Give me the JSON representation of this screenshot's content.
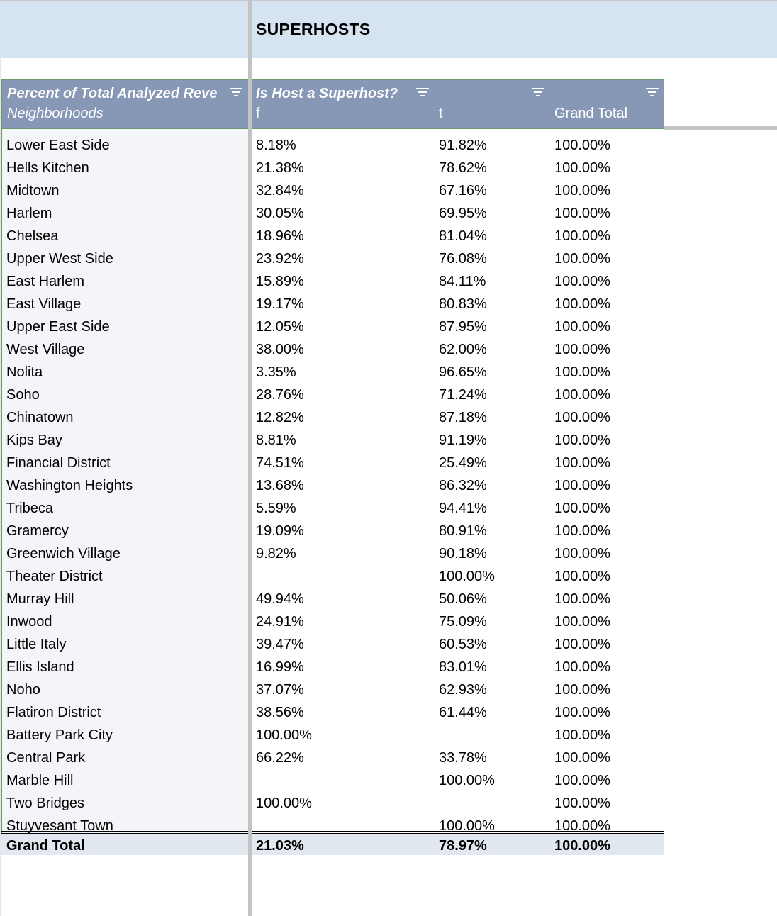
{
  "sheet": {
    "title": "SUPERHOSTS",
    "header": {
      "value_label": "Percent of Total Analyzed Reve",
      "row_label": "Neighborhoods",
      "column_field": "Is Host a Superhost?",
      "col_f": "f",
      "col_t": "t",
      "col_total": "Grand Total"
    },
    "rows": [
      {
        "name": "Lower East Side",
        "f": "8.18%",
        "t": "91.82%",
        "total": "100.00%"
      },
      {
        "name": "Hells Kitchen",
        "f": "21.38%",
        "t": "78.62%",
        "total": "100.00%"
      },
      {
        "name": "Midtown",
        "f": "32.84%",
        "t": "67.16%",
        "total": "100.00%"
      },
      {
        "name": "Harlem",
        "f": "30.05%",
        "t": "69.95%",
        "total": "100.00%"
      },
      {
        "name": "Chelsea",
        "f": "18.96%",
        "t": "81.04%",
        "total": "100.00%"
      },
      {
        "name": "Upper West Side",
        "f": "23.92%",
        "t": "76.08%",
        "total": "100.00%"
      },
      {
        "name": "East Harlem",
        "f": "15.89%",
        "t": "84.11%",
        "total": "100.00%"
      },
      {
        "name": "East Village",
        "f": "19.17%",
        "t": "80.83%",
        "total": "100.00%"
      },
      {
        "name": "Upper East Side",
        "f": "12.05%",
        "t": "87.95%",
        "total": "100.00%"
      },
      {
        "name": "West Village",
        "f": "38.00%",
        "t": "62.00%",
        "total": "100.00%"
      },
      {
        "name": "Nolita",
        "f": "3.35%",
        "t": "96.65%",
        "total": "100.00%"
      },
      {
        "name": "Soho",
        "f": "28.76%",
        "t": "71.24%",
        "total": "100.00%"
      },
      {
        "name": "Chinatown",
        "f": "12.82%",
        "t": "87.18%",
        "total": "100.00%"
      },
      {
        "name": "Kips Bay",
        "f": "8.81%",
        "t": "91.19%",
        "total": "100.00%"
      },
      {
        "name": "Financial District",
        "f": "74.51%",
        "t": "25.49%",
        "total": "100.00%"
      },
      {
        "name": "Washington Heights",
        "f": "13.68%",
        "t": "86.32%",
        "total": "100.00%"
      },
      {
        "name": "Tribeca",
        "f": "5.59%",
        "t": "94.41%",
        "total": "100.00%"
      },
      {
        "name": "Gramercy",
        "f": "19.09%",
        "t": "80.91%",
        "total": "100.00%"
      },
      {
        "name": "Greenwich Village",
        "f": "9.82%",
        "t": "90.18%",
        "total": "100.00%"
      },
      {
        "name": "Theater District",
        "f": "",
        "t": "100.00%",
        "total": "100.00%"
      },
      {
        "name": "Murray Hill",
        "f": "49.94%",
        "t": "50.06%",
        "total": "100.00%"
      },
      {
        "name": "Inwood",
        "f": "24.91%",
        "t": "75.09%",
        "total": "100.00%"
      },
      {
        "name": "Little Italy",
        "f": "39.47%",
        "t": "60.53%",
        "total": "100.00%"
      },
      {
        "name": "Ellis Island",
        "f": "16.99%",
        "t": "83.01%",
        "total": "100.00%"
      },
      {
        "name": "Noho",
        "f": "37.07%",
        "t": "62.93%",
        "total": "100.00%"
      },
      {
        "name": "Flatiron District",
        "f": "38.56%",
        "t": "61.44%",
        "total": "100.00%"
      },
      {
        "name": "Battery Park City",
        "f": "100.00%",
        "t": "",
        "total": "100.00%"
      },
      {
        "name": "Central Park",
        "f": "66.22%",
        "t": "33.78%",
        "total": "100.00%"
      },
      {
        "name": "Marble Hill",
        "f": "",
        "t": "100.00%",
        "total": "100.00%"
      },
      {
        "name": "Two Bridges",
        "f": "100.00%",
        "t": "",
        "total": "100.00%"
      },
      {
        "name": "Stuyvesant Town",
        "f": "",
        "t": "100.00%",
        "total": "100.00%"
      }
    ],
    "grand_total": {
      "name": "Grand Total",
      "f": "21.03%",
      "t": "78.97%",
      "total": "100.00%"
    },
    "colors": {
      "title_band": "#d6e3f1",
      "header_bg": "#8797b6",
      "row_label_bg": "#f3f5f8",
      "total_bg": "#e2e8f0",
      "border": "#6a9a6a"
    }
  }
}
